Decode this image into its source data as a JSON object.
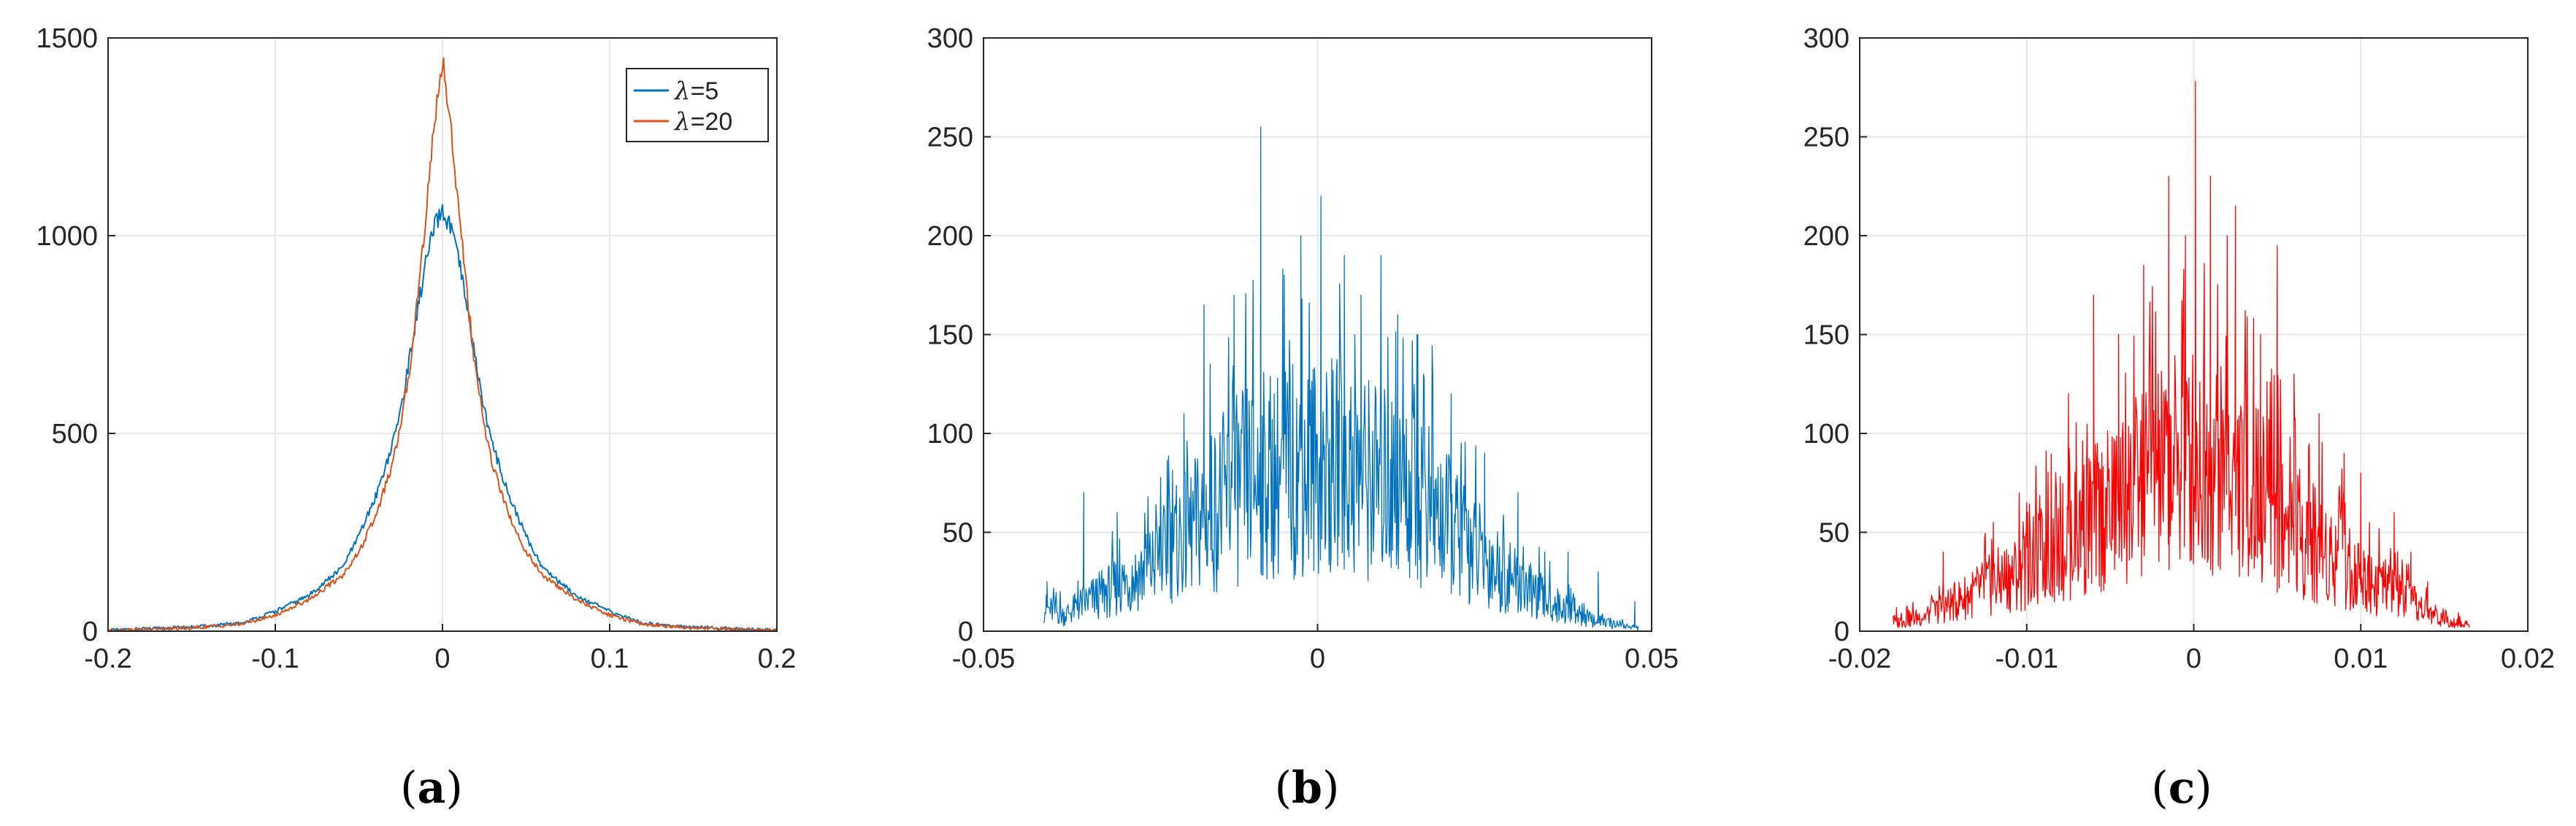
{
  "figure": {
    "captions": [
      {
        "open": "(",
        "letter": "a",
        "close": ")"
      },
      {
        "open": "(",
        "letter": "b",
        "close": ")"
      },
      {
        "open": "(",
        "letter": "c",
        "close": ")"
      }
    ]
  },
  "chart_data": [
    {
      "type": "line",
      "title": "",
      "xlabel": "",
      "ylabel": "",
      "xlim": [
        -0.2,
        0.2
      ],
      "ylim": [
        0,
        1500
      ],
      "xticks": [
        -0.2,
        -0.1,
        0,
        0.1,
        0.2
      ],
      "xtick_labels": [
        "-0.2",
        "-0.1",
        "0",
        "0.1",
        "0.2"
      ],
      "yticks": [
        0,
        500,
        1000,
        1500
      ],
      "ytick_labels": [
        "0",
        "500",
        "1000",
        "1500"
      ],
      "grid": true,
      "legend": {
        "placement": "top-right"
      },
      "series": [
        {
          "name": "λ=5",
          "name_prefix": "λ",
          "name_suffix": "=5",
          "color": "#0072bd",
          "x": [
            -0.2,
            -0.15,
            -0.12,
            -0.1,
            -0.08,
            -0.06,
            -0.05,
            -0.04,
            -0.03,
            -0.025,
            -0.02,
            -0.015,
            -0.01,
            -0.005,
            0,
            0.005,
            0.01,
            0.015,
            0.02,
            0.025,
            0.03,
            0.04,
            0.05,
            0.06,
            0.08,
            0.1,
            0.12,
            0.15,
            0.2
          ],
          "y": [
            2,
            10,
            20,
            50,
            90,
            160,
            240,
            340,
            470,
            560,
            680,
            810,
            930,
            1020,
            1060,
            1020,
            930,
            810,
            680,
            560,
            470,
            340,
            240,
            160,
            90,
            50,
            20,
            10,
            2
          ]
        },
        {
          "name": "λ=20",
          "name_prefix": "λ",
          "name_suffix": "=20",
          "color": "#d95319",
          "x": [
            -0.2,
            -0.15,
            -0.12,
            -0.1,
            -0.08,
            -0.06,
            -0.05,
            -0.04,
            -0.03,
            -0.025,
            -0.02,
            -0.015,
            -0.01,
            -0.005,
            0,
            0.005,
            0.01,
            0.015,
            0.02,
            0.025,
            0.03,
            0.04,
            0.05,
            0.06,
            0.08,
            0.1,
            0.12,
            0.15,
            0.2
          ],
          "y": [
            2,
            8,
            18,
            40,
            80,
            140,
            200,
            290,
            420,
            520,
            650,
            840,
            1050,
            1280,
            1450,
            1280,
            1050,
            840,
            650,
            520,
            420,
            290,
            200,
            140,
            80,
            40,
            18,
            8,
            2
          ]
        }
      ]
    },
    {
      "type": "line",
      "title": "",
      "xlabel": "",
      "ylabel": "",
      "xlim": [
        -0.05,
        0.05
      ],
      "ylim": [
        0,
        300
      ],
      "xticks": [
        -0.05,
        0,
        0.05
      ],
      "xtick_labels": [
        "-0.05",
        "0",
        "0.05"
      ],
      "yticks": [
        0,
        50,
        100,
        150,
        200,
        250,
        300
      ],
      "ytick_labels": [
        "0",
        "50",
        "100",
        "150",
        "200",
        "250",
        "300"
      ],
      "grid": true,
      "series": [
        {
          "color": "#0072bd",
          "x": [
            -0.041,
            -0.038,
            -0.035,
            -0.03,
            -0.025,
            -0.02,
            -0.015,
            -0.01,
            -0.005,
            0,
            0.005,
            0.01,
            0.015,
            0.02,
            0.025,
            0.03,
            0.035,
            0.04,
            0.045,
            0.048
          ],
          "y": [
            15,
            10,
            18,
            28,
            40,
            60,
            80,
            95,
            100,
            105,
            100,
            95,
            85,
            65,
            45,
            30,
            18,
            8,
            4,
            2
          ],
          "peaks": [
            [
              -0.0405,
              25
            ],
            [
              -0.035,
              70
            ],
            [
              -0.03,
              60
            ],
            [
              -0.02,
              110
            ],
            [
              -0.017,
              165
            ],
            [
              -0.0125,
              170
            ],
            [
              -0.0085,
              255
            ],
            [
              -0.005,
              180
            ],
            [
              0.0005,
              220
            ],
            [
              -0.0025,
              200
            ],
            [
              0.004,
              190
            ],
            [
              0.0065,
              170
            ],
            [
              0.0095,
              190
            ],
            [
              0.012,
              160
            ],
            [
              0.015,
              150
            ],
            [
              0.02,
              120
            ],
            [
              0.025,
              90
            ],
            [
              0.03,
              70
            ],
            [
              0.034,
              40
            ],
            [
              0.0375,
              40
            ],
            [
              0.042,
              30
            ],
            [
              0.0475,
              15
            ]
          ]
        }
      ]
    },
    {
      "type": "line",
      "title": "",
      "xlabel": "",
      "ylabel": "",
      "xlim": [
        -0.02,
        0.02
      ],
      "ylim": [
        0,
        300
      ],
      "xticks": [
        -0.02,
        -0.01,
        0,
        0.01,
        0.02
      ],
      "xtick_labels": [
        "-0.02",
        "-0.01",
        "0",
        "0.01",
        "0.02"
      ],
      "yticks": [
        0,
        50,
        100,
        150,
        200,
        250,
        300
      ],
      "ytick_labels": [
        "0",
        "50",
        "100",
        "150",
        "200",
        "250",
        "300"
      ],
      "grid": true,
      "series": [
        {
          "color": "#ff0000",
          "x": [
            -0.018,
            -0.016,
            -0.014,
            -0.012,
            -0.01,
            -0.008,
            -0.006,
            -0.004,
            -0.002,
            0,
            0.002,
            0.004,
            0.006,
            0.008,
            0.01,
            0.012,
            0.014,
            0.0165
          ],
          "y": [
            5,
            10,
            20,
            30,
            40,
            55,
            70,
            85,
            100,
            110,
            100,
            85,
            65,
            50,
            35,
            25,
            12,
            3
          ],
          "peaks": [
            [
              -0.0178,
              12
            ],
            [
              -0.015,
              40
            ],
            [
              -0.012,
              55
            ],
            [
              -0.01,
              65
            ],
            [
              -0.0075,
              120
            ],
            [
              -0.006,
              170
            ],
            [
              -0.0045,
              150
            ],
            [
              -0.003,
              185
            ],
            [
              -0.0015,
              230
            ],
            [
              -0.0005,
              200
            ],
            [
              0.0001,
              278
            ],
            [
              0.001,
              230
            ],
            [
              0.002,
              200
            ],
            [
              0.0025,
              215
            ],
            [
              0.004,
              150
            ],
            [
              0.005,
              195
            ],
            [
              0.006,
              130
            ],
            [
              0.0075,
              110
            ],
            [
              0.009,
              90
            ],
            [
              0.01,
              80
            ],
            [
              0.012,
              60
            ],
            [
              0.013,
              40
            ],
            [
              0.014,
              25
            ]
          ]
        }
      ]
    }
  ]
}
